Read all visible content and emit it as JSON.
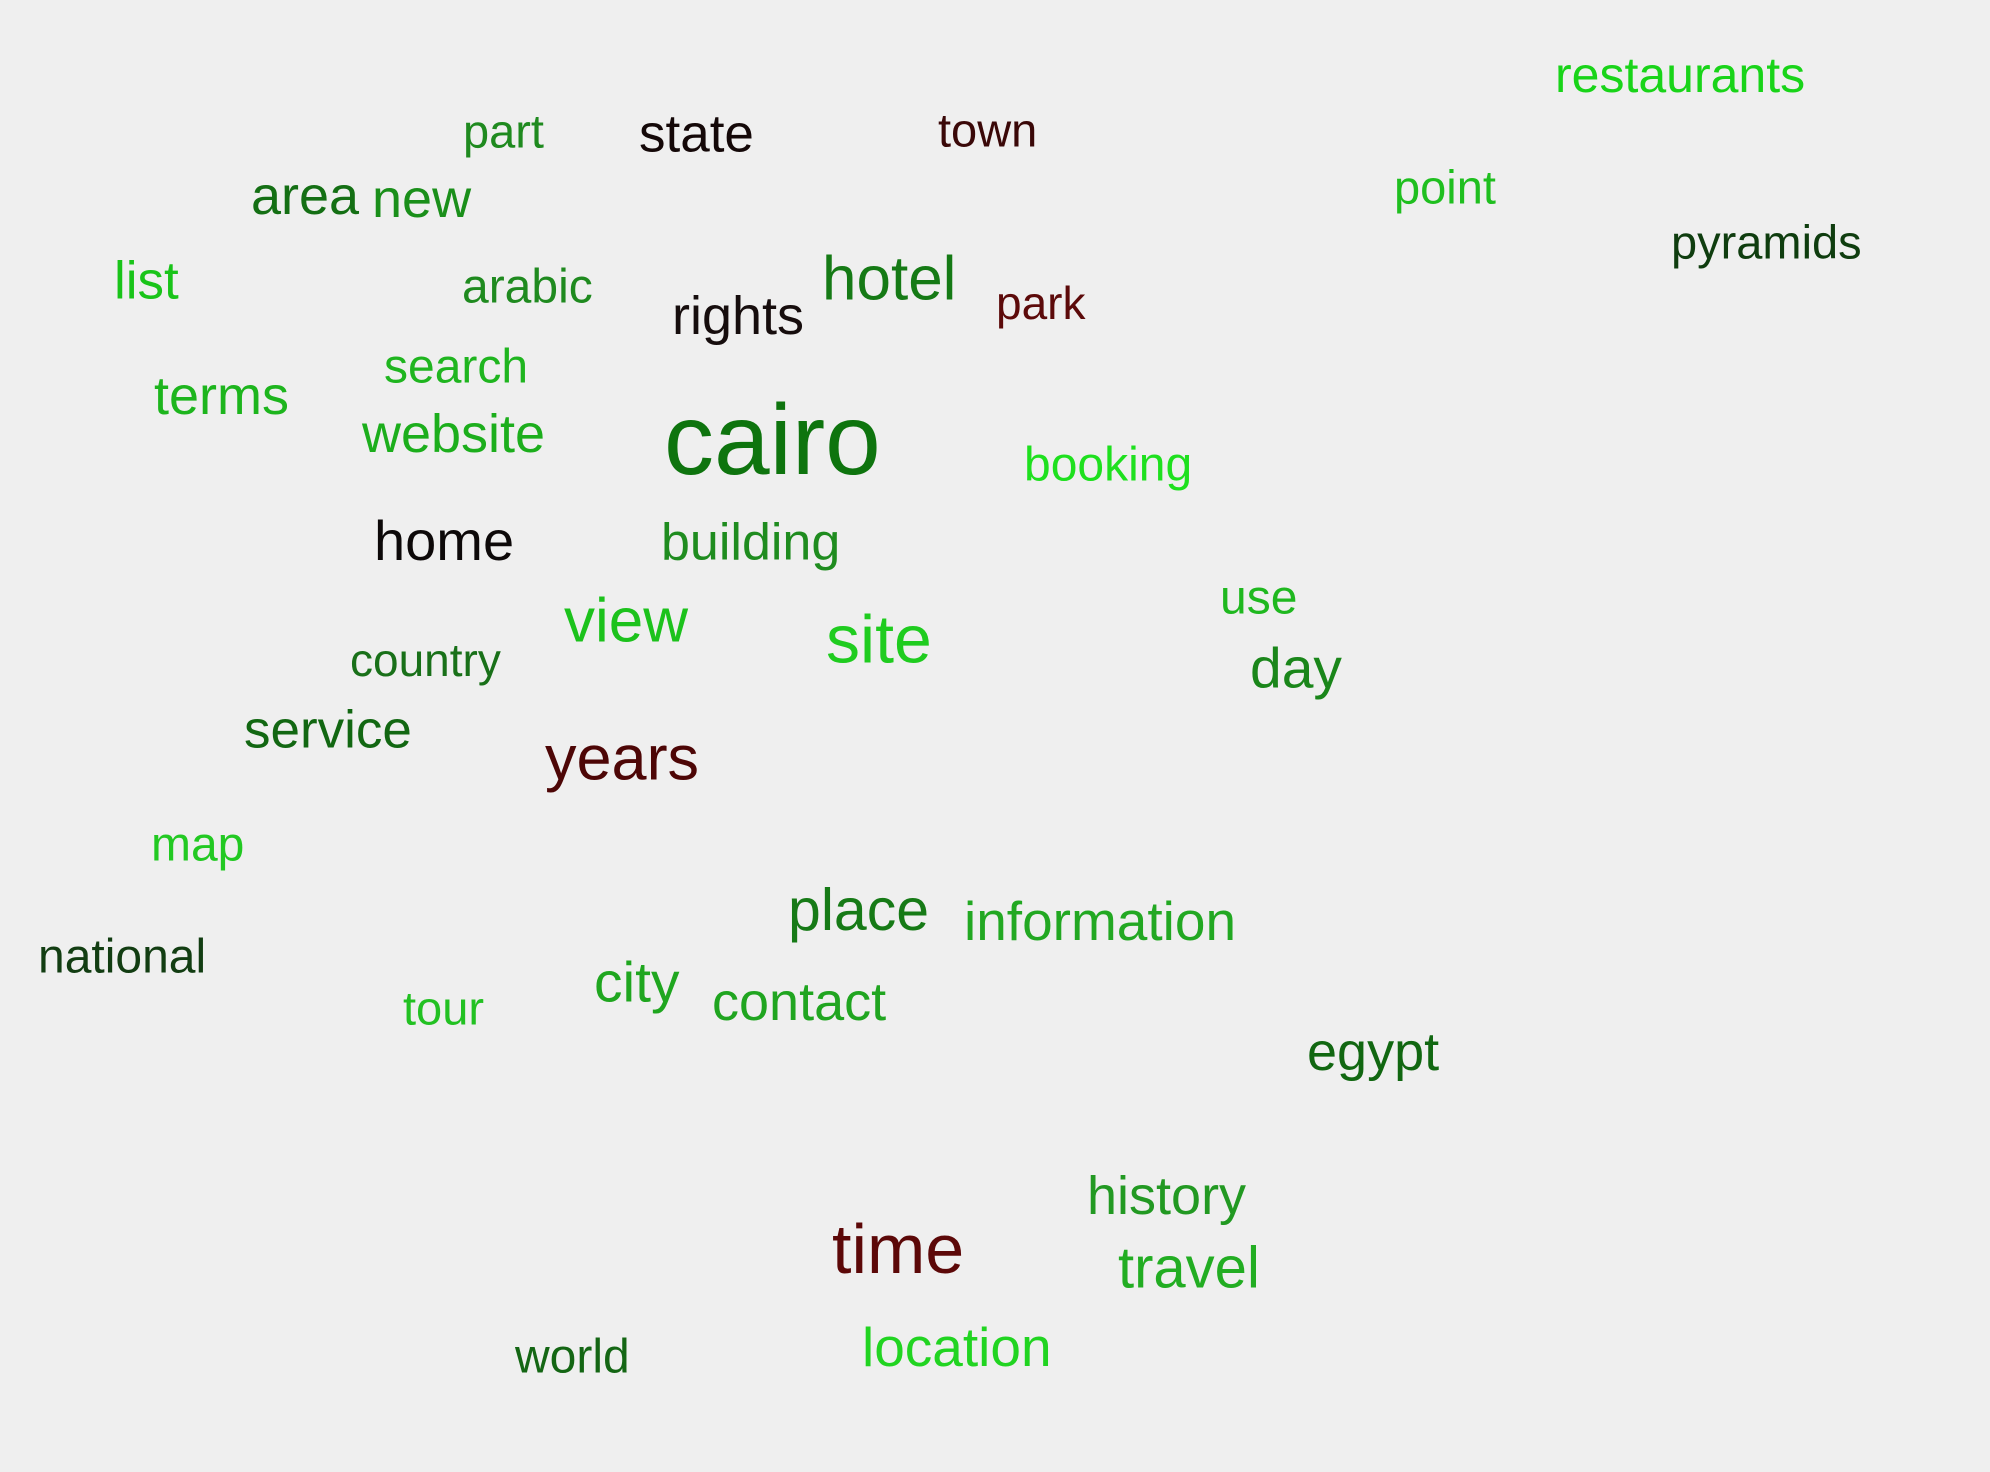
{
  "words": [
    {
      "text": "restaurants",
      "color": "#19d419"
    },
    {
      "text": "part",
      "color": "#1f8a1f"
    },
    {
      "text": "state",
      "color": "#140808"
    },
    {
      "text": "town",
      "color": "#3a0808"
    },
    {
      "text": "point",
      "color": "#1fbf1f"
    },
    {
      "text": "area",
      "color": "#146f14"
    },
    {
      "text": "new",
      "color": "#1a8f1a"
    },
    {
      "text": "pyramids",
      "color": "#0f3d0f"
    },
    {
      "text": "list",
      "color": "#19c419"
    },
    {
      "text": "arabic",
      "color": "#1f8a1f"
    },
    {
      "text": "hotel",
      "color": "#157a15"
    },
    {
      "text": "rights",
      "color": "#160d0d"
    },
    {
      "text": "park",
      "color": "#5c0a0a"
    },
    {
      "text": "search",
      "color": "#1fb51f"
    },
    {
      "text": "terms",
      "color": "#1db51d"
    },
    {
      "text": "website",
      "color": "#1cae1c"
    },
    {
      "text": "cairo",
      "color": "#0e740e"
    },
    {
      "text": "booking",
      "color": "#1ee01e"
    },
    {
      "text": "home",
      "color": "#0d0909"
    },
    {
      "text": "building",
      "color": "#1f8c1f"
    },
    {
      "text": "use",
      "color": "#1fb81f"
    },
    {
      "text": "view",
      "color": "#1cc21c"
    },
    {
      "text": "site",
      "color": "#1fcc1f"
    },
    {
      "text": "country",
      "color": "#197019"
    },
    {
      "text": "day",
      "color": "#1a861a"
    },
    {
      "text": "service",
      "color": "#126712"
    },
    {
      "text": "years",
      "color": "#4d0606"
    },
    {
      "text": "map",
      "color": "#22c922"
    },
    {
      "text": "place",
      "color": "#167a16"
    },
    {
      "text": "information",
      "color": "#22a822"
    },
    {
      "text": "national",
      "color": "#123d12"
    },
    {
      "text": "city",
      "color": "#1fa61f"
    },
    {
      "text": "tour",
      "color": "#22c122"
    },
    {
      "text": "contact",
      "color": "#20a520"
    },
    {
      "text": "egypt",
      "color": "#116711"
    },
    {
      "text": "history",
      "color": "#229922"
    },
    {
      "text": "time",
      "color": "#5c0808"
    },
    {
      "text": "travel",
      "color": "#22ad22"
    },
    {
      "text": "world",
      "color": "#146614"
    },
    {
      "text": "location",
      "color": "#21d421"
    }
  ]
}
